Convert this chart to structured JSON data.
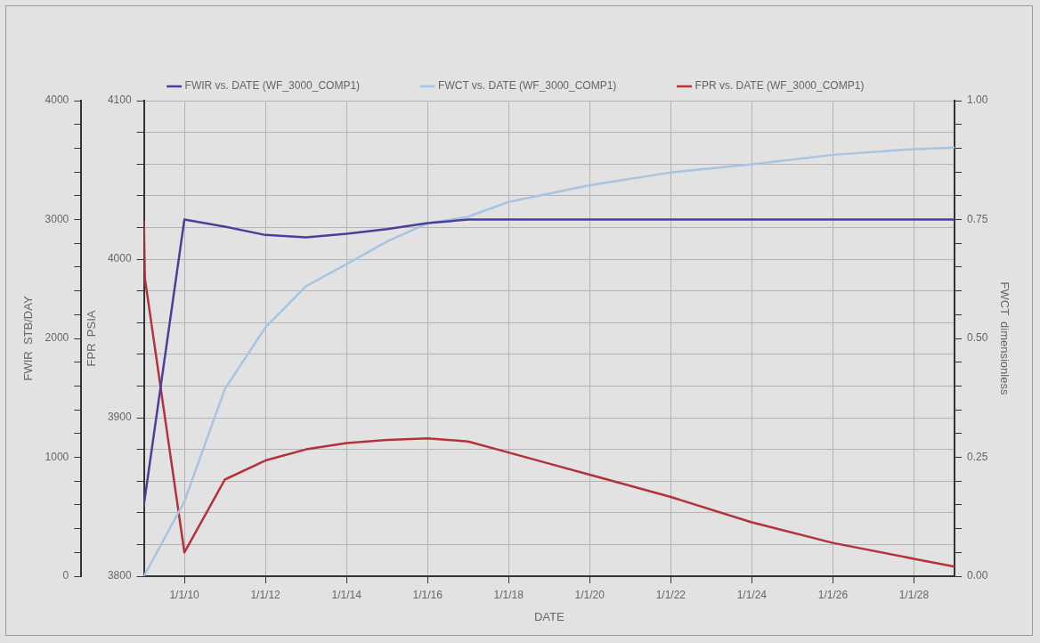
{
  "chart_data": {
    "type": "line",
    "xlabel": "DATE",
    "ylabel": "FWIR  STB/DAY",
    "y2label": "FWCT  dimensionless",
    "y3label": "FPR  PSIA",
    "xlim": [
      "2009-01-01",
      "2029-01-01"
    ],
    "xticks": [
      {
        "value": "2010-01-01",
        "label": "1/1/10"
      },
      {
        "value": "2012-01-01",
        "label": "1/1/12"
      },
      {
        "value": "2014-01-01",
        "label": "1/1/14"
      },
      {
        "value": "2016-01-01",
        "label": "1/1/16"
      },
      {
        "value": "2018-01-01",
        "label": "1/1/18"
      },
      {
        "value": "2020-01-01",
        "label": "1/1/20"
      },
      {
        "value": "2022-01-01",
        "label": "1/1/22"
      },
      {
        "value": "2024-01-01",
        "label": "1/1/24"
      },
      {
        "value": "2026-01-01",
        "label": "1/1/26"
      },
      {
        "value": "2028-01-01",
        "label": "1/1/28"
      }
    ],
    "ylim": [
      0,
      4000
    ],
    "yticks": [
      0,
      {
        "value": 200,
        "label": null
      },
      {
        "value": 400,
        "label": null
      },
      {
        "value": 600,
        "label": null
      },
      {
        "value": 800,
        "label": null
      },
      1000,
      {
        "value": 1200,
        "label": null
      },
      {
        "value": 1400,
        "label": null
      },
      {
        "value": 1600,
        "label": null
      },
      {
        "value": 1800,
        "label": null
      },
      2000,
      {
        "value": 2200,
        "label": null
      },
      {
        "value": 2400,
        "label": null
      },
      {
        "value": 2600,
        "label": null
      },
      {
        "value": 2800,
        "label": null
      },
      3000,
      {
        "value": 3200,
        "label": null
      },
      {
        "value": 3400,
        "label": null
      },
      {
        "value": 3600,
        "label": null
      },
      {
        "value": 3800,
        "label": null
      },
      4000
    ],
    "y3lim": [
      3800,
      4100
    ],
    "y3ticks": [
      3800,
      {
        "value": 3820,
        "label": null
      },
      {
        "value": 3840,
        "label": null
      },
      {
        "value": 3860,
        "label": null
      },
      {
        "value": 3880,
        "label": null
      },
      3900,
      {
        "value": 3920,
        "label": null
      },
      {
        "value": 3940,
        "label": null
      },
      {
        "value": 3960,
        "label": null
      },
      {
        "value": 3980,
        "label": null
      },
      4000,
      {
        "value": 4020,
        "label": null
      },
      {
        "value": 4040,
        "label": null
      },
      {
        "value": 4060,
        "label": null
      },
      {
        "value": 4080,
        "label": null
      },
      4100
    ],
    "y2lim": [
      0,
      1
    ],
    "y2ticks": [
      {
        "value": 0,
        "label": "0.00"
      },
      {
        "value": 0.05,
        "label": null
      },
      {
        "value": 0.1,
        "label": null
      },
      {
        "value": 0.15,
        "label": null
      },
      {
        "value": 0.2,
        "label": null
      },
      {
        "value": 0.25,
        "label": "0.25"
      },
      {
        "value": 0.3,
        "label": null
      },
      {
        "value": 0.35,
        "label": null
      },
      {
        "value": 0.4,
        "label": null
      },
      {
        "value": 0.45,
        "label": null
      },
      {
        "value": 0.5,
        "label": "0.50"
      },
      {
        "value": 0.55,
        "label": null
      },
      {
        "value": 0.6,
        "label": null
      },
      {
        "value": 0.65,
        "label": null
      },
      {
        "value": 0.7,
        "label": null
      },
      {
        "value": 0.75,
        "label": "0.75"
      },
      {
        "value": 0.8,
        "label": null
      },
      {
        "value": 0.85,
        "label": null
      },
      {
        "value": 0.9,
        "label": null
      },
      {
        "value": 0.95,
        "label": null
      },
      {
        "value": 1,
        "label": "1.00"
      }
    ],
    "grid": true,
    "legend": "top",
    "marker": "none",
    "line_style": "solid",
    "series": [
      {
        "name": "FWIR vs. DATE (WF_3000_COMP1)",
        "color": "#4a3f9c",
        "x": [
          "2009-01-01",
          "2010-01-01",
          "2011-01-01",
          "2012-01-01",
          "2013-01-01",
          "2014-01-01",
          "2015-01-01",
          "2016-01-01",
          "2017-01-01",
          "2029-01-01"
        ],
        "values": [
          600,
          3000,
          2940,
          2870,
          2850,
          2880,
          2920,
          2970,
          3000,
          3000
        ]
      },
      {
        "name": "FWCT vs. DATE (WF_3000_COMP1)",
        "color": "#a8c4de",
        "axis": "y2",
        "x": [
          "2009-01-01",
          "2010-01-01",
          "2011-01-01",
          "2012-01-01",
          "2013-01-01",
          "2014-01-01",
          "2015-01-01",
          "2016-01-01",
          "2017-01-01",
          "2018-01-01",
          "2020-01-01",
          "2022-01-01",
          "2024-01-01",
          "2026-01-01",
          "2028-01-01",
          "2029-01-01"
        ],
        "values": [
          0,
          0.157,
          0.394,
          0.523,
          0.61,
          0.656,
          0.704,
          0.742,
          0.756,
          0.787,
          0.822,
          0.849,
          0.866,
          0.886,
          0.898,
          0.901
        ]
      },
      {
        "name": "FPR vs. DATE (WF_3000_COMP1)",
        "color": "#b5323b",
        "axis": "y3",
        "x": [
          "2009-01-01",
          "2009-01-10",
          "2010-01-01",
          "2011-01-01",
          "2012-01-01",
          "2013-01-01",
          "2014-01-01",
          "2015-01-01",
          "2016-01-01",
          "2017-01-01",
          "2018-01-01",
          "2019-01-01",
          "2020-01-01",
          "2022-01-01",
          "2024-01-01",
          "2026-01-01",
          "2028-01-01",
          "2029-01-01"
        ],
        "values": [
          4024,
          3988,
          3815,
          3861,
          3873,
          3880,
          3884,
          3886,
          3887,
          3885,
          3878,
          3871,
          3864,
          3850,
          3834,
          3821,
          3811,
          3806
        ]
      }
    ]
  }
}
